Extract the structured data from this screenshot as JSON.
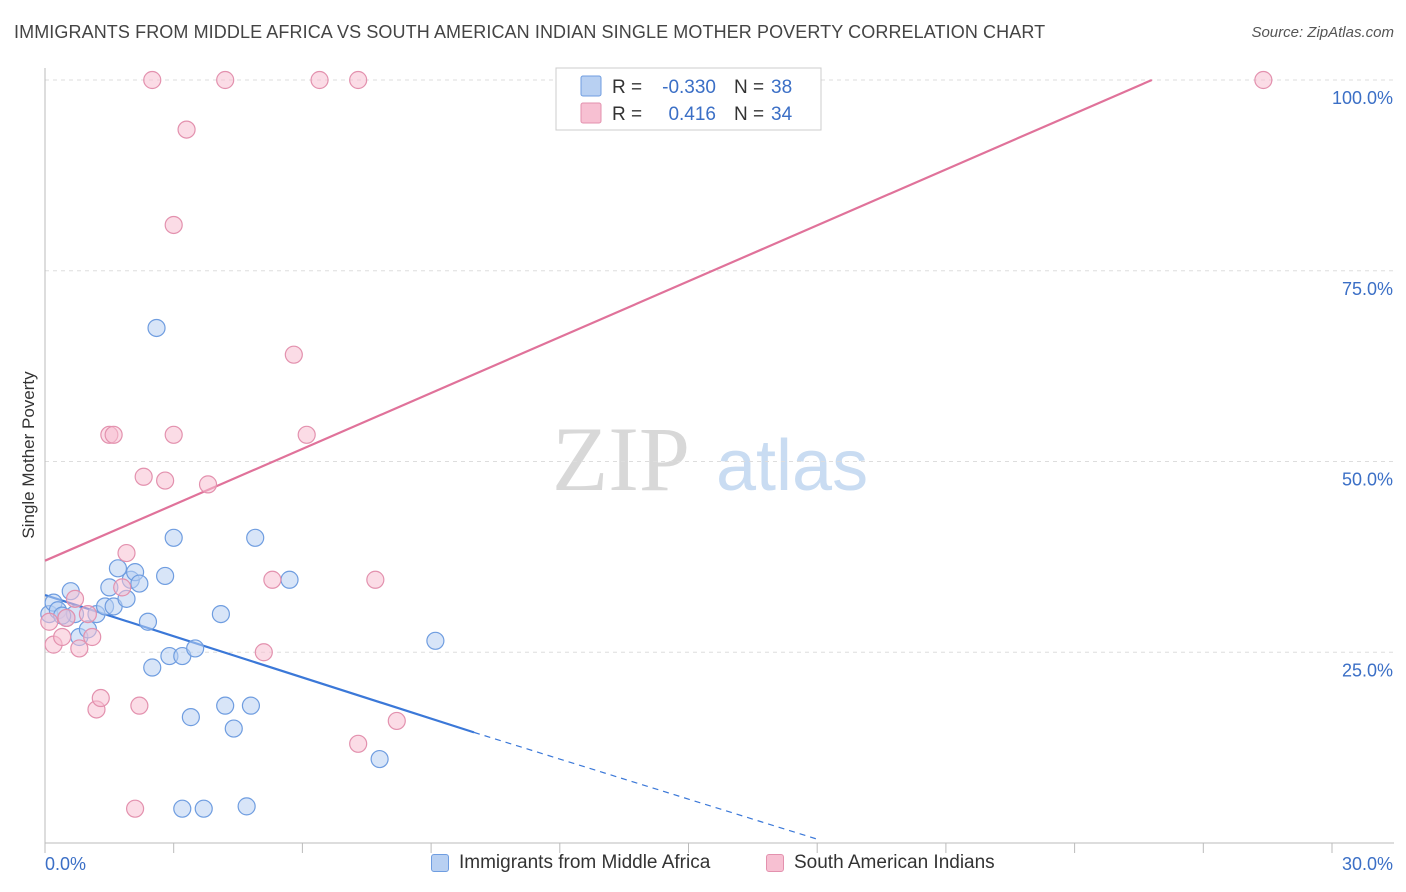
{
  "title": "IMMIGRANTS FROM MIDDLE AFRICA VS SOUTH AMERICAN INDIAN SINGLE MOTHER POVERTY CORRELATION CHART",
  "source": "Source: ZipAtlas.com",
  "watermark": {
    "zip": "ZIP",
    "atlas": "atlas"
  },
  "colors": {
    "blue": "#3b78d8",
    "blue_fill": "#b8d0f2",
    "pink": "#e0729a",
    "pink_fill": "#f7c0d2",
    "tick": "#3b6fc6"
  },
  "legend": {
    "rows": [
      {
        "r_label": "R =",
        "r_value": "-0.330",
        "n_label": "N =",
        "n_value": "38"
      },
      {
        "r_label": "R =",
        "r_value": "0.416",
        "n_label": "N =",
        "n_value": "34"
      }
    ]
  },
  "chart_data": {
    "type": "scatter",
    "xlabel": "",
    "ylabel": "Single Mother Poverty",
    "xlim": [
      0,
      30
    ],
    "ylim": [
      0,
      100
    ],
    "x_tick_labels": [
      "0.0%",
      "30.0%"
    ],
    "y_tick_labels": [
      "25.0%",
      "50.0%",
      "75.0%",
      "100.0%"
    ],
    "y_ticks": [
      25,
      50,
      75,
      100
    ],
    "grid": true,
    "series": [
      {
        "name": "Immigrants from Middle Africa",
        "color": "#3b78d8",
        "points": [
          [
            0.1,
            30.0
          ],
          [
            0.2,
            31.5
          ],
          [
            0.3,
            30.5
          ],
          [
            0.5,
            29.5
          ],
          [
            0.6,
            33.0
          ],
          [
            0.7,
            30.0
          ],
          [
            0.8,
            27.0
          ],
          [
            1.0,
            28.0
          ],
          [
            1.2,
            30.0
          ],
          [
            1.4,
            31.0
          ],
          [
            1.5,
            33.5
          ],
          [
            1.6,
            31.0
          ],
          [
            1.7,
            36.0
          ],
          [
            1.9,
            32.0
          ],
          [
            2.0,
            34.5
          ],
          [
            2.1,
            35.5
          ],
          [
            2.2,
            34.0
          ],
          [
            2.4,
            29.0
          ],
          [
            2.5,
            23.0
          ],
          [
            2.6,
            67.5
          ],
          [
            2.8,
            35.0
          ],
          [
            2.9,
            24.5
          ],
          [
            3.0,
            40.0
          ],
          [
            3.2,
            24.5
          ],
          [
            3.2,
            4.5
          ],
          [
            3.4,
            16.5
          ],
          [
            3.5,
            25.5
          ],
          [
            3.7,
            4.5
          ],
          [
            4.1,
            30.0
          ],
          [
            4.2,
            18.0
          ],
          [
            4.4,
            15.0
          ],
          [
            4.7,
            4.8
          ],
          [
            4.8,
            18.0
          ],
          [
            4.9,
            40.0
          ],
          [
            5.7,
            34.5
          ],
          [
            7.8,
            11.0
          ],
          [
            9.1,
            26.5
          ],
          [
            0.4,
            29.8
          ]
        ]
      },
      {
        "name": "South American Indians",
        "color": "#e0729a",
        "points": [
          [
            0.1,
            29.0
          ],
          [
            0.2,
            26.0
          ],
          [
            0.4,
            27.0
          ],
          [
            0.5,
            29.5
          ],
          [
            0.7,
            32.0
          ],
          [
            0.8,
            25.5
          ],
          [
            1.0,
            30.0
          ],
          [
            1.1,
            27.0
          ],
          [
            1.2,
            17.5
          ],
          [
            1.3,
            19.0
          ],
          [
            1.5,
            53.5
          ],
          [
            1.6,
            53.5
          ],
          [
            1.8,
            33.5
          ],
          [
            1.9,
            38.0
          ],
          [
            2.1,
            4.5
          ],
          [
            2.2,
            18.0
          ],
          [
            2.3,
            48.0
          ],
          [
            2.5,
            100.0
          ],
          [
            2.8,
            47.5
          ],
          [
            3.0,
            53.5
          ],
          [
            3.0,
            81.0
          ],
          [
            3.3,
            93.5
          ],
          [
            3.8,
            47.0
          ],
          [
            4.2,
            100.0
          ],
          [
            5.1,
            25.0
          ],
          [
            5.3,
            34.5
          ],
          [
            5.8,
            64.0
          ],
          [
            6.1,
            53.5
          ],
          [
            6.4,
            100.0
          ],
          [
            7.3,
            13.0
          ],
          [
            7.3,
            100.0
          ],
          [
            7.7,
            34.5
          ],
          [
            8.2,
            16.0
          ],
          [
            28.4,
            100.0
          ]
        ]
      }
    ],
    "trendlines": [
      {
        "series": "Immigrants from Middle Africa",
        "x": [
          0,
          10
        ],
        "y": [
          32.5,
          14.5
        ],
        "dashed_to": [
          18,
          0.5
        ]
      },
      {
        "series": "South American Indians",
        "x": [
          0,
          25.8
        ],
        "y": [
          37.0,
          100.0
        ]
      }
    ]
  }
}
